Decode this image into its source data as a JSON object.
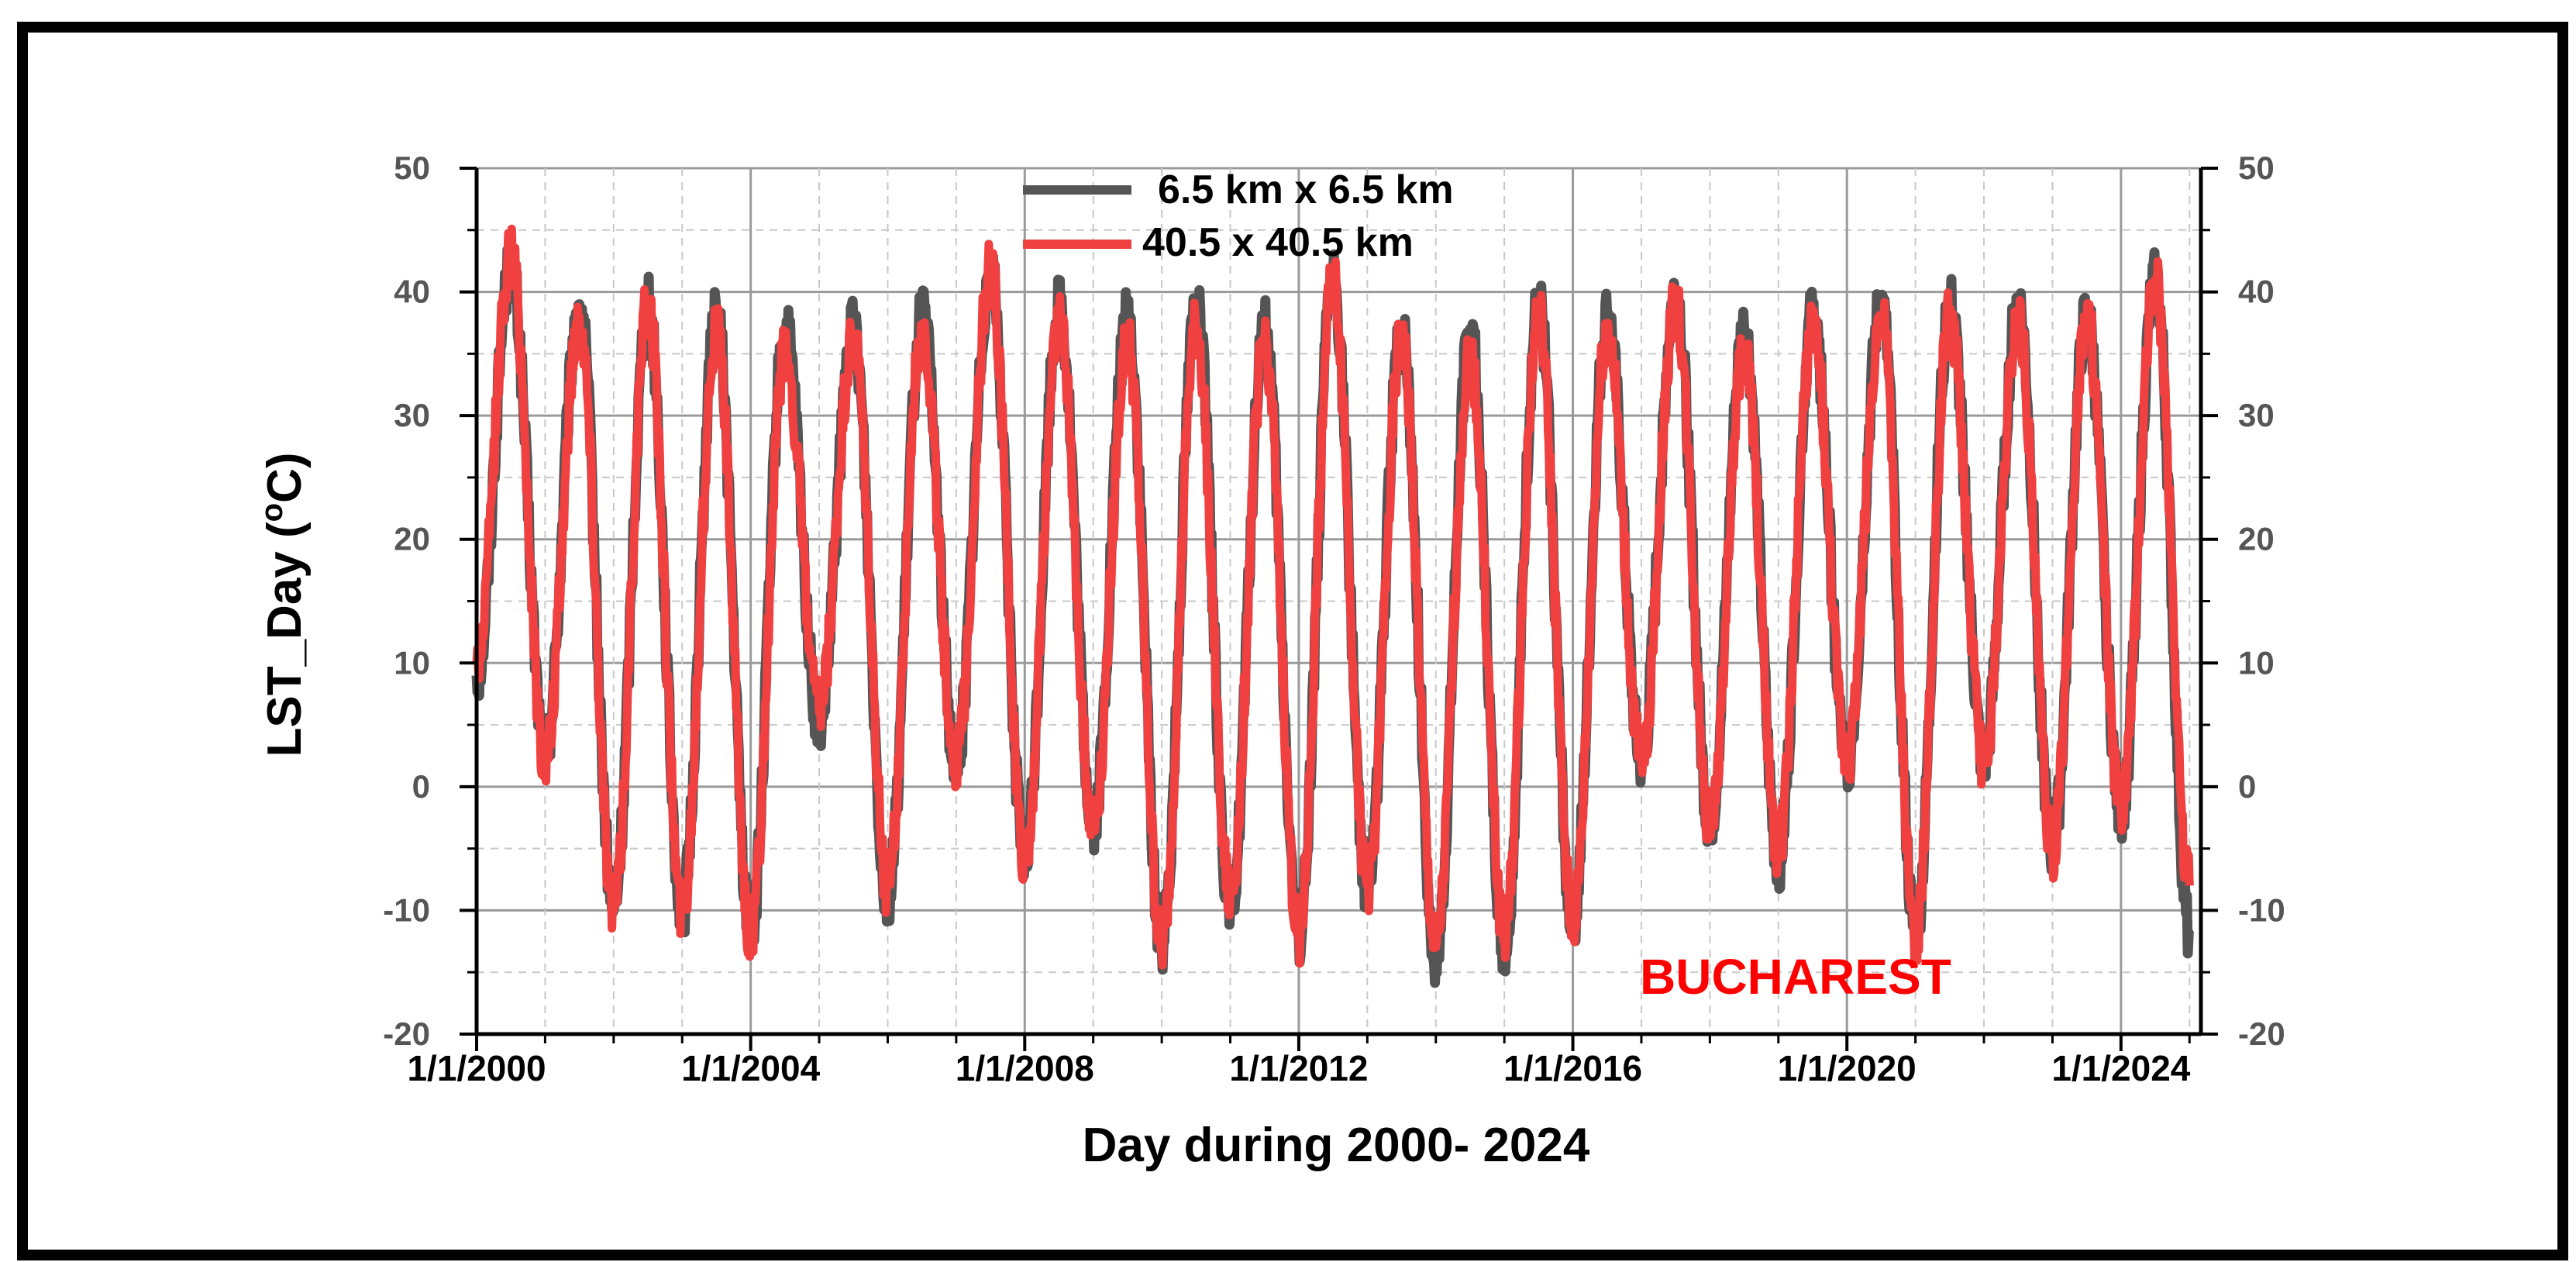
{
  "chart_data": {
    "type": "line",
    "title": "",
    "xlabel": "Day during 2000- 2024",
    "ylabel": "LST_Day (°C)",
    "ylabel_parts": {
      "main": "LST_Day (",
      "deg": "o",
      "unit": "C)"
    },
    "ylim": [
      -20,
      50
    ],
    "yticks": [
      "50",
      "40",
      "30",
      "20",
      "10",
      "0",
      "-10",
      "-20"
    ],
    "yticks_right": [
      "50",
      "40",
      "30",
      "20",
      "10",
      "0",
      "-10",
      "-20"
    ],
    "xlim": [
      "1/1/2000",
      "3/1/2025"
    ],
    "xticks": [
      "1/1/2000",
      "1/1/2004",
      "1/1/2008",
      "1/1/2012",
      "1/1/2016",
      "1/1/2020",
      "1/1/2024"
    ],
    "grid": true,
    "legend_position": "top-center",
    "annotation": "BUCHAREST",
    "series": [
      {
        "name": "6.5 km x 6.5 km",
        "color": "#555555",
        "x": [
          "2000-01",
          "2000-07",
          "2001-01",
          "2001-07",
          "2002-01",
          "2002-07",
          "2003-01",
          "2003-07",
          "2004-01",
          "2004-07",
          "2005-01",
          "2005-07",
          "2006-01",
          "2006-07",
          "2007-01",
          "2007-07",
          "2008-01",
          "2008-07",
          "2009-01",
          "2009-07",
          "2010-01",
          "2010-07",
          "2011-01",
          "2011-07",
          "2012-01",
          "2012-07",
          "2013-01",
          "2013-07",
          "2014-01",
          "2014-07",
          "2015-01",
          "2015-07",
          "2016-01",
          "2016-07",
          "2017-01",
          "2017-07",
          "2018-01",
          "2018-07",
          "2019-01",
          "2019-07",
          "2020-01",
          "2020-07",
          "2021-01",
          "2021-07",
          "2022-01",
          "2022-07",
          "2023-01",
          "2023-07",
          "2024-01",
          "2024-07",
          "2025-01"
        ],
        "y": [
          9,
          42,
          3,
          39,
          -10,
          39,
          -10,
          38,
          -12,
          37,
          5,
          37,
          -9,
          38,
          2,
          42,
          -6,
          39,
          -3,
          38,
          -13,
          39,
          -10,
          37,
          -12,
          41,
          -8,
          37,
          -14,
          37,
          -13,
          39,
          -11,
          38,
          2,
          40,
          -3,
          37,
          -6,
          38,
          2,
          39,
          -12,
          39,
          2,
          39,
          -5,
          38,
          -2,
          41,
          -12
        ]
      },
      {
        "name": "40.5 x 40.5 km",
        "color": "#f04040",
        "x": [
          "2000-01",
          "2000-07",
          "2001-01",
          "2001-07",
          "2002-01",
          "2002-07",
          "2003-01",
          "2003-07",
          "2004-01",
          "2004-07",
          "2005-01",
          "2005-07",
          "2006-01",
          "2006-07",
          "2007-01",
          "2007-07",
          "2008-01",
          "2008-07",
          "2009-01",
          "2009-07",
          "2010-01",
          "2010-07",
          "2011-01",
          "2011-07",
          "2012-01",
          "2012-07",
          "2013-01",
          "2013-07",
          "2014-01",
          "2014-07",
          "2015-01",
          "2015-07",
          "2016-01",
          "2016-07",
          "2017-01",
          "2017-07",
          "2018-01",
          "2018-07",
          "2019-01",
          "2019-07",
          "2020-01",
          "2020-07",
          "2021-01",
          "2021-07",
          "2022-01",
          "2022-07",
          "2023-01",
          "2023-07",
          "2024-01",
          "2024-07",
          "2025-01"
        ],
        "y": [
          10,
          43,
          2,
          38,
          -10,
          39,
          -10,
          37,
          -12,
          35,
          6,
          36,
          -8,
          37,
          2,
          42,
          -6,
          38,
          -3,
          36,
          -13,
          37,
          -9,
          36,
          -12,
          41,
          -8,
          36,
          -13,
          35,
          -12,
          38,
          -11,
          37,
          2,
          39,
          -3,
          35,
          -5,
          37,
          2,
          38,
          -12,
          38,
          2,
          38,
          -5,
          38,
          -2,
          41,
          -8
        ]
      }
    ]
  }
}
